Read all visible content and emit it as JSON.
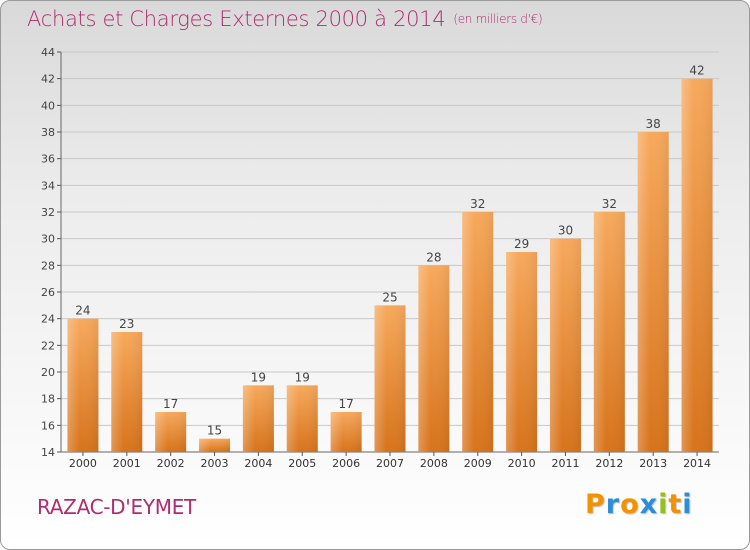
{
  "title": "Achats et Charges Externes 2000 à 2014",
  "unit": "(en milliers d'€)",
  "location": "RAZAC-D'EYMET",
  "brand": "Proxiti",
  "brand_letters": [
    {
      "ch": "P",
      "color": "#f39200"
    },
    {
      "ch": "r",
      "color": "#2c8ed6"
    },
    {
      "ch": "o",
      "color": "#f39200"
    },
    {
      "ch": "x",
      "color": "#2c8ed6"
    },
    {
      "ch": "i",
      "color": "#95c11f"
    },
    {
      "ch": "t",
      "color": "#f39200"
    },
    {
      "ch": "i",
      "color": "#2c8ed6"
    }
  ],
  "colors": {
    "title": "#b02c6e",
    "bar_light": "#f5a65b",
    "bar_dark": "#d9781e",
    "grid": "#c8c8c8"
  },
  "chart_data": {
    "type": "bar",
    "categories": [
      "2000",
      "2001",
      "2002",
      "2003",
      "2004",
      "2005",
      "2006",
      "2007",
      "2008",
      "2009",
      "2010",
      "2011",
      "2012",
      "2013",
      "2014"
    ],
    "values": [
      24,
      23,
      17,
      15,
      19,
      19,
      17,
      25,
      28,
      32,
      29,
      30,
      32,
      38,
      42
    ],
    "ylim": [
      14,
      44
    ],
    "yticks": [
      14,
      16,
      18,
      20,
      22,
      24,
      26,
      28,
      30,
      32,
      34,
      36,
      38,
      40,
      42,
      44
    ],
    "grid": true,
    "data_labels": true
  }
}
